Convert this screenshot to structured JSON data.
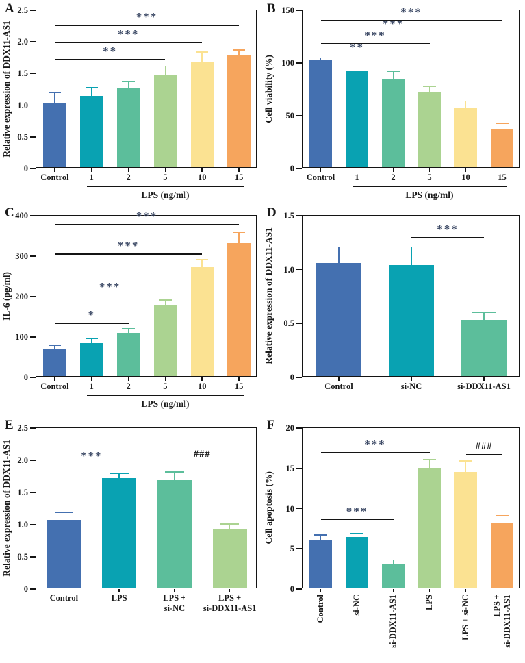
{
  "colors": {
    "bar_palette": [
      "#4470b0",
      "#09a2b2",
      "#5cbe9b",
      "#abd391",
      "#fbe292",
      "#f6a55d"
    ],
    "axis": "#141414",
    "star_annotation": "#3d4a66",
    "hash_annotation": "#1a1a1a"
  },
  "chart_data": [
    {
      "id": "A",
      "panel_label": "A",
      "type": "bar",
      "ylabel": "Relative expression of DDX11-AS1",
      "xlabel": "",
      "ylim": [
        0,
        2.5
      ],
      "yticks": [
        {
          "v": 0,
          "t": "0"
        },
        {
          "v": 0.5,
          "t": "0.5"
        },
        {
          "v": 1,
          "t": "1.0"
        },
        {
          "v": 1.5,
          "t": "1.5"
        },
        {
          "v": 2,
          "t": "2.0"
        },
        {
          "v": 2.5,
          "t": "2.5"
        }
      ],
      "categories": [
        "Control",
        "1",
        "2",
        "5",
        "10",
        "15"
      ],
      "values": [
        1.02,
        1.13,
        1.26,
        1.45,
        1.67,
        1.78
      ],
      "errors": [
        0.18,
        0.15,
        0.12,
        0.17,
        0.17,
        0.09
      ],
      "bar_color_indices": [
        0,
        1,
        2,
        3,
        4,
        5
      ],
      "significance": [
        {
          "from": 0,
          "to": 3,
          "at": 1.73,
          "label": "**"
        },
        {
          "from": 0,
          "to": 4,
          "at": 2.0,
          "label": "***"
        },
        {
          "from": 0,
          "to": 5,
          "at": 2.27,
          "label": "***"
        }
      ],
      "group_line": {
        "from": 1,
        "to": 5,
        "label": "LPS (ng/ml)"
      }
    },
    {
      "id": "B",
      "panel_label": "B",
      "type": "bar",
      "ylabel": "Cell viability (%)",
      "xlabel": "",
      "ylim": [
        0,
        150
      ],
      "yticks": [
        {
          "v": 0,
          "t": "0"
        },
        {
          "v": 50,
          "t": "50"
        },
        {
          "v": 100,
          "t": "100"
        },
        {
          "v": 150,
          "t": "150"
        }
      ],
      "categories": [
        "Control",
        "1",
        "2",
        "5",
        "10",
        "15"
      ],
      "values": [
        101,
        91,
        84,
        71,
        56,
        36
      ],
      "errors": [
        4,
        4,
        8,
        7,
        8,
        7
      ],
      "bar_color_indices": [
        0,
        1,
        2,
        3,
        4,
        5
      ],
      "significance": [
        {
          "from": 0,
          "to": 2,
          "at": 108,
          "label": "**"
        },
        {
          "from": 0,
          "to": 3,
          "at": 119,
          "label": "***"
        },
        {
          "from": 0,
          "to": 4,
          "at": 130,
          "label": "***"
        },
        {
          "from": 0,
          "to": 5,
          "at": 141,
          "label": "***"
        }
      ],
      "group_line": {
        "from": 1,
        "to": 5,
        "label": "LPS (ng/ml)"
      }
    },
    {
      "id": "C",
      "panel_label": "C",
      "type": "bar",
      "ylabel": "IL-6 (pg/ml)",
      "xlabel": "",
      "ylim": [
        0,
        400
      ],
      "yticks": [
        {
          "v": 0,
          "t": "0"
        },
        {
          "v": 100,
          "t": "100"
        },
        {
          "v": 200,
          "t": "200"
        },
        {
          "v": 300,
          "t": "300"
        },
        {
          "v": 400,
          "t": "400"
        }
      ],
      "categories": [
        "Control",
        "1",
        "2",
        "5",
        "10",
        "15"
      ],
      "values": [
        68,
        82,
        107,
        175,
        269,
        329
      ],
      "errors": [
        12,
        14,
        14,
        17,
        23,
        30
      ],
      "bar_color_indices": [
        0,
        1,
        2,
        3,
        4,
        5
      ],
      "significance": [
        {
          "from": 0,
          "to": 2,
          "at": 135,
          "label": "*"
        },
        {
          "from": 0,
          "to": 3,
          "at": 205,
          "label": "***"
        },
        {
          "from": 0,
          "to": 4,
          "at": 306,
          "label": "***"
        },
        {
          "from": 0,
          "to": 5,
          "at": 379,
          "label": "***"
        }
      ],
      "group_line": {
        "from": 1,
        "to": 5,
        "label": "LPS (ng/ml)"
      }
    },
    {
      "id": "D",
      "panel_label": "D",
      "type": "bar",
      "ylabel": "Relative expression of DDX11-AS1",
      "xlabel": "",
      "ylim": [
        0,
        1.5
      ],
      "yticks": [
        {
          "v": 0,
          "t": "0"
        },
        {
          "v": 0.5,
          "t": "0.5"
        },
        {
          "v": 1,
          "t": "1.0"
        },
        {
          "v": 1.5,
          "t": "1.5"
        }
      ],
      "categories": [
        "Control",
        "si-NC",
        "si-DDX11-AS1"
      ],
      "values": [
        1.05,
        1.03,
        0.52
      ],
      "errors": [
        0.16,
        0.18,
        0.08
      ],
      "bar_color_indices": [
        0,
        1,
        2
      ],
      "significance": [
        {
          "from": 1,
          "to": 2,
          "at": 1.3,
          "label": "***"
        }
      ],
      "group_line": null
    },
    {
      "id": "E",
      "panel_label": "E",
      "type": "bar",
      "ylabel": "Relative expression of DDX11-AS1",
      "xlabel": "",
      "ylim": [
        0,
        2.5
      ],
      "yticks": [
        {
          "v": 0,
          "t": "0"
        },
        {
          "v": 0.5,
          "t": "0.5"
        },
        {
          "v": 1,
          "t": "1.0"
        },
        {
          "v": 1.5,
          "t": "1.5"
        },
        {
          "v": 2,
          "t": "2.0"
        },
        {
          "v": 2.5,
          "t": "2.5"
        }
      ],
      "categories": [
        "Control",
        "LPS",
        "LPS +\nsi-NC",
        "LPS +\nsi-DDX11-AS1"
      ],
      "values": [
        1.05,
        1.7,
        1.67,
        0.92
      ],
      "errors": [
        0.14,
        0.1,
        0.15,
        0.09
      ],
      "bar_color_indices": [
        0,
        1,
        2,
        3
      ],
      "significance": [
        {
          "from": 0,
          "to": 1,
          "at": 1.95,
          "label": "***"
        },
        {
          "from": 2,
          "to": 3,
          "at": 1.98,
          "label": "###"
        }
      ],
      "group_line": null
    },
    {
      "id": "F",
      "panel_label": "F",
      "type": "bar",
      "ylabel": "Cell apoptosis (%)",
      "xlabel": "",
      "ylim": [
        0,
        20
      ],
      "yticks": [
        {
          "v": 0,
          "t": "0"
        },
        {
          "v": 5,
          "t": "5"
        },
        {
          "v": 10,
          "t": "10"
        },
        {
          "v": 15,
          "t": "15"
        },
        {
          "v": 20,
          "t": "20"
        }
      ],
      "categories": [
        "Control",
        "si-NC",
        "si-DDX11-AS1",
        "LPS",
        "LPS + si-NC",
        "LPS +\nsi-DDX11-AS1"
      ],
      "rotated_xticklabels": true,
      "values": [
        6.0,
        6.3,
        2.9,
        14.9,
        14.4,
        8.1
      ],
      "errors": [
        0.7,
        0.6,
        0.7,
        1.2,
        1.5,
        1.0
      ],
      "bar_color_indices": [
        0,
        1,
        2,
        3,
        4,
        5
      ],
      "significance": [
        {
          "from": 0,
          "to": 2,
          "at": 8.7,
          "label": "***"
        },
        {
          "from": 0,
          "to": 3,
          "at": 17.0,
          "label": "***"
        },
        {
          "from": 4,
          "to": 5,
          "at": 16.8,
          "label": "###"
        }
      ],
      "group_line": null
    }
  ]
}
